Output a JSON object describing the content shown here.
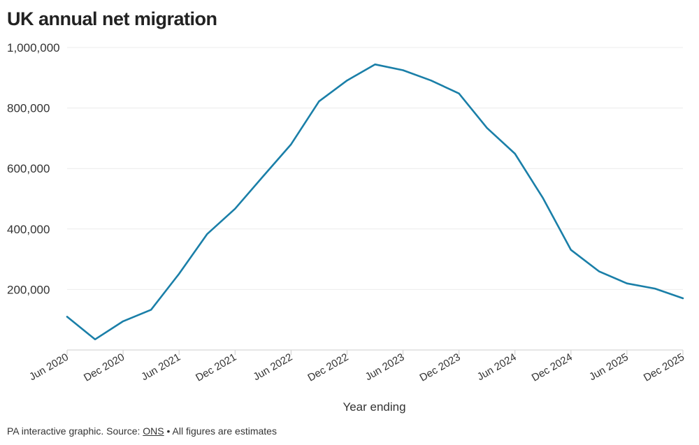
{
  "chart_data": {
    "type": "line",
    "title": "UK annual net migration",
    "xlabel": "Year ending",
    "ylabel": "",
    "ylim": [
      0,
      1000000
    ],
    "yticks": [
      200000,
      400000,
      600000,
      800000,
      1000000
    ],
    "ytick_labels": [
      "200,000",
      "400,000",
      "600,000",
      "800,000",
      "1,000,000"
    ],
    "grid": true,
    "categories": [
      "Jun 2020",
      "Sep 2020",
      "Dec 2020",
      "Mar 2021",
      "Jun 2021",
      "Sep 2021",
      "Dec 2021",
      "Mar 2022",
      "Jun 2022",
      "Sep 2022",
      "Dec 2022",
      "Mar 2023",
      "Jun 2023",
      "Sep 2023",
      "Dec 2023",
      "Mar 2024",
      "Jun 2024",
      "Sep 2024",
      "Dec 2024",
      "Mar 2025",
      "Jun 2025",
      "Sep 2025",
      "Dec 2025"
    ],
    "xtick_labels": [
      "Jun 2020",
      "Dec 2020",
      "Jun 2021",
      "Dec 2021",
      "Jun 2022",
      "Dec 2022",
      "Jun 2023",
      "Dec 2023",
      "Jun 2024",
      "Dec 2024",
      "Jun 2025",
      "Dec 2025"
    ],
    "series": [
      {
        "color": "#1a7fa8",
        "values": [
          110000,
          35000,
          95000,
          133000,
          252000,
          383000,
          467000,
          574000,
          680000,
          822000,
          891000,
          944000,
          925000,
          891000,
          848000,
          734000,
          649000,
          502000,
          331000,
          260000,
          220000,
          203000,
          171000
        ]
      }
    ]
  },
  "footer": {
    "prefix": "PA interactive graphic. Source: ",
    "source_link": "ONS",
    "suffix": " • All figures are estimates"
  }
}
